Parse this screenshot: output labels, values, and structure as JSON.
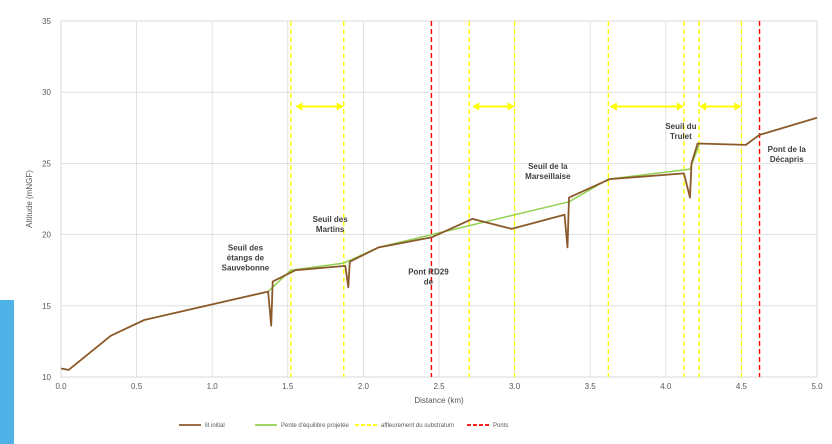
{
  "chart_data": {
    "type": "line",
    "xlabel": "Distance (km)",
    "ylabel": "Altitude (mNGF)",
    "xlim": [
      0,
      5
    ],
    "ylim": [
      10,
      35
    ],
    "x_ticks": [
      "0.0",
      "0.5",
      "1.0",
      "1.5",
      "2.0",
      "2.5",
      "3.0",
      "3.5",
      "4.0",
      "4.5",
      "5.0"
    ],
    "y_ticks": [
      "10",
      "15",
      "20",
      "25",
      "30",
      "35"
    ],
    "grid": true,
    "legend_position": "bottom",
    "colors": {
      "lit_initial": "#8b5a2b",
      "pente": "#92d050",
      "affleurement": "#ffff00",
      "ponts": "#ff0000",
      "arrows": "#ffff00",
      "grid": "#d9d9d9"
    },
    "series": [
      {
        "name": "lit initial",
        "x": [
          0.0,
          0.05,
          0.33,
          0.55,
          1.0,
          1.37,
          1.39,
          1.4,
          1.55,
          1.88,
          1.9,
          1.91,
          2.1,
          2.45,
          2.72,
          2.98,
          3.33,
          3.35,
          3.36,
          3.63,
          4.12,
          4.16,
          4.17,
          4.21,
          4.53,
          4.58,
          4.62,
          5.0
        ],
        "y": [
          10.6,
          10.5,
          12.9,
          14.0,
          15.1,
          16.0,
          13.6,
          16.7,
          17.5,
          17.8,
          16.3,
          18.1,
          19.1,
          19.8,
          21.1,
          20.4,
          21.4,
          19.1,
          22.6,
          23.9,
          24.3,
          22.6,
          25.0,
          26.4,
          26.3,
          26.7,
          27.0,
          28.2
        ]
      },
      {
        "name": "Pente d'équilibre projetée",
        "x": [
          1.37,
          1.52,
          1.87,
          2.1,
          3.36,
          3.62,
          4.16,
          4.22
        ],
        "y": [
          16.0,
          17.5,
          18.0,
          19.1,
          22.3,
          23.9,
          24.6,
          26.3
        ]
      }
    ],
    "affleurement_x": [
      1.52,
      1.87,
      2.7,
      3.0,
      3.62,
      4.12,
      4.22,
      4.5
    ],
    "ponts_x": [
      2.45,
      4.62
    ],
    "arrows": [
      {
        "x1": 1.55,
        "x2": 1.87,
        "y": 29.0
      },
      {
        "x1": 2.72,
        "x2": 3.0,
        "y": 29.0
      },
      {
        "x1": 3.63,
        "x2": 4.12,
        "y": 29.0
      },
      {
        "x1": 4.22,
        "x2": 4.5,
        "y": 29.0
      }
    ],
    "annotations": [
      {
        "lines": [
          "Seuil des",
          "étangs de",
          "Sauvebonne"
        ],
        "x": 1.22,
        "y": 18.9
      },
      {
        "lines": [
          "Seuil des",
          "Martins"
        ],
        "x": 1.78,
        "y": 20.9
      },
      {
        "lines": [
          "Pont RD29",
          "de"
        ],
        "x": 2.43,
        "y": 17.2
      },
      {
        "lines": [
          "Seuil de la",
          "Marseillaise"
        ],
        "x": 3.22,
        "y": 24.6
      },
      {
        "lines": [
          "Seuil du",
          "Trulet"
        ],
        "x": 4.1,
        "y": 27.4
      },
      {
        "lines": [
          "Pont de la",
          "Décapris"
        ],
        "x": 4.8,
        "y": 25.8
      }
    ],
    "legend": [
      {
        "label": "lit initial",
        "style": "solid",
        "key": "lit_initial"
      },
      {
        "label": "Pente d'équilibre projetée",
        "style": "solid",
        "key": "pente"
      },
      {
        "label": "affleurement du substratum",
        "style": "dashed",
        "key": "affleurement"
      },
      {
        "label": "Ponts",
        "style": "dashed",
        "key": "ponts"
      }
    ]
  }
}
